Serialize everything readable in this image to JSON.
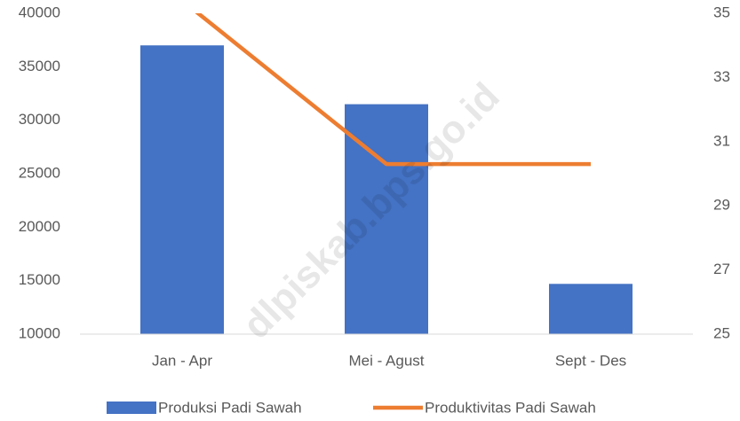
{
  "chart_data": {
    "type": "bar",
    "categories": [
      "Jan - Apr",
      "Mei - Agust",
      "Sept - Des"
    ],
    "series": [
      {
        "name": "Produksi Padi Sawah",
        "color": "#4472c4",
        "values": [
          37000,
          31500,
          14700
        ]
      },
      {
        "name": "Produktivitas Padi Sawah",
        "color": "#ed7d31",
        "type": "line",
        "axis": "y2",
        "values": [
          35.4,
          30.3,
          30.3
        ]
      }
    ],
    "ylim": [
      10000,
      40000
    ],
    "yticks": [
      10000,
      15000,
      20000,
      25000,
      30000,
      35000,
      40000
    ],
    "y2lim": [
      25,
      35
    ],
    "y2ticks": [
      25,
      27,
      29,
      31,
      33,
      35
    ],
    "legend": "bottom",
    "watermark": "dlpiskab.bps.go.id"
  }
}
